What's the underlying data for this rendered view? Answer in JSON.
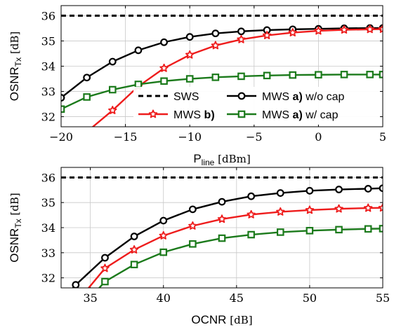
{
  "chart_data": [
    {
      "type": "line",
      "xlabel_main": "P",
      "xlabel_sub": "line",
      "xlabel_unit": "[dBm]",
      "ylabel_main": "OSNR",
      "ylabel_sub": "Tx",
      "ylabel_unit": "[dB]",
      "xlim": [
        -20,
        5
      ],
      "ylim": [
        31.6,
        36.4
      ],
      "xticks": [
        -20,
        -15,
        -10,
        -5,
        0,
        5
      ],
      "xtick_labels": [
        "−20",
        "−15",
        "−10",
        "−5",
        "0",
        "5"
      ],
      "yticks": [
        32,
        33,
        34,
        35,
        36
      ],
      "ytick_labels": [
        "32",
        "33",
        "34",
        "35",
        "36"
      ],
      "grid": true,
      "legend_position": "lower-right",
      "series": [
        {
          "key": "sws",
          "name": "SWS",
          "style": "dashed",
          "color": "#000000",
          "marker": "none",
          "x": [
            -20,
            5
          ],
          "y": [
            36.0,
            36.0
          ]
        },
        {
          "key": "mws_a_wo",
          "name_parts": [
            "MWS ",
            "a)",
            " w/o cap"
          ],
          "style": "solid",
          "color": "#000000",
          "marker": "circle",
          "x": [
            -20,
            -18,
            -16,
            -14,
            -12,
            -10,
            -8,
            -6,
            -4,
            -2,
            0,
            2,
            4,
            5
          ],
          "y": [
            32.75,
            33.55,
            34.18,
            34.63,
            34.95,
            35.16,
            35.3,
            35.38,
            35.43,
            35.46,
            35.48,
            35.5,
            35.51,
            35.51
          ]
        },
        {
          "key": "mws_b",
          "name_parts": [
            "MWS ",
            "b)",
            ""
          ],
          "style": "solid",
          "color": "#ee1c1c",
          "marker": "star",
          "x": [
            -20,
            -18,
            -16,
            -14,
            -12,
            -10,
            -8,
            -6,
            -4,
            -2,
            0,
            2,
            4,
            5
          ],
          "y": [
            30.2,
            31.4,
            32.25,
            33.2,
            33.92,
            34.45,
            34.82,
            35.06,
            35.22,
            35.33,
            35.4,
            35.44,
            35.46,
            35.47
          ]
        },
        {
          "key": "mws_a_w",
          "name_parts": [
            "MWS ",
            "a)",
            " w/ cap"
          ],
          "style": "solid",
          "color": "#1b7a1b",
          "marker": "square",
          "x": [
            -20,
            -18,
            -16,
            -14,
            -12,
            -10,
            -8,
            -6,
            -4,
            -2,
            0,
            2,
            4,
            5
          ],
          "y": [
            32.3,
            32.78,
            33.07,
            33.28,
            33.41,
            33.5,
            33.56,
            33.6,
            33.63,
            33.65,
            33.66,
            33.67,
            33.67,
            33.67
          ]
        }
      ]
    },
    {
      "type": "line",
      "xlabel_main": "OCNR",
      "xlabel_unit": "[dB]",
      "ylabel_main": "OSNR",
      "ylabel_sub": "Tx",
      "ylabel_unit": "[dB]",
      "xlim": [
        33,
        55
      ],
      "ylim": [
        31.6,
        36.4
      ],
      "xticks": [
        35,
        40,
        45,
        50,
        55
      ],
      "xtick_labels": [
        "35",
        "40",
        "45",
        "50",
        "55"
      ],
      "yticks": [
        32,
        33,
        34,
        35,
        36
      ],
      "ytick_labels": [
        "32",
        "33",
        "34",
        "35",
        "36"
      ],
      "grid": true,
      "series": [
        {
          "key": "sws",
          "style": "dashed",
          "color": "#000000",
          "marker": "none",
          "x": [
            33,
            55
          ],
          "y": [
            36.0,
            36.0
          ]
        },
        {
          "key": "mws_a_wo",
          "style": "solid",
          "color": "#000000",
          "marker": "circle",
          "x": [
            33.5,
            34,
            36,
            38,
            40,
            42,
            44,
            46,
            48,
            50,
            52,
            54,
            55
          ],
          "y": [
            31.4,
            31.72,
            32.8,
            33.65,
            34.28,
            34.73,
            35.03,
            35.25,
            35.38,
            35.47,
            35.52,
            35.55,
            35.57
          ]
        },
        {
          "key": "mws_b",
          "style": "solid",
          "color": "#ee1c1c",
          "marker": "star",
          "x": [
            34.6,
            36,
            38,
            40,
            42,
            44,
            46,
            48,
            50,
            52,
            54,
            55
          ],
          "y": [
            31.4,
            32.38,
            33.12,
            33.68,
            34.07,
            34.34,
            34.52,
            34.63,
            34.7,
            34.75,
            34.78,
            34.79
          ]
        },
        {
          "key": "mws_a_w",
          "style": "solid",
          "color": "#1b7a1b",
          "marker": "square",
          "x": [
            35.3,
            36,
            38,
            40,
            42,
            44,
            46,
            48,
            50,
            52,
            54,
            55
          ],
          "y": [
            31.4,
            31.85,
            32.53,
            33.02,
            33.35,
            33.58,
            33.72,
            33.82,
            33.88,
            33.92,
            33.95,
            33.96
          ]
        }
      ]
    }
  ]
}
